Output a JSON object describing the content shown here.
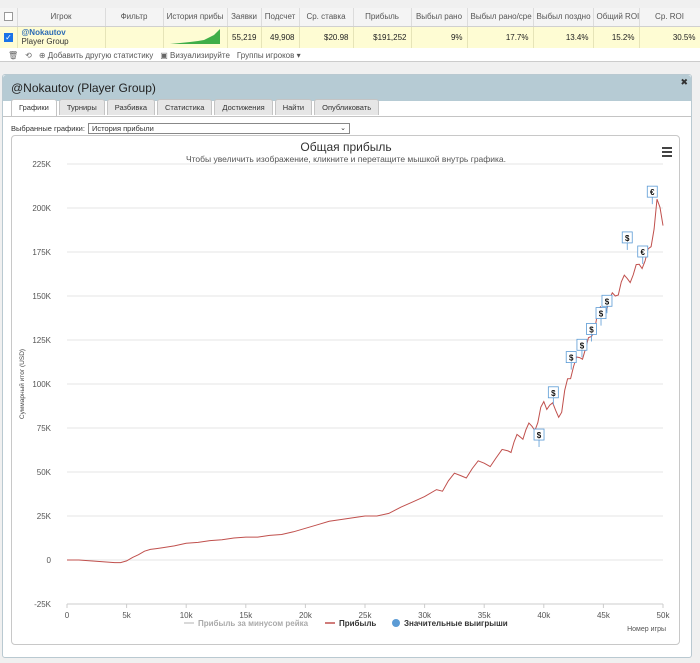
{
  "table": {
    "headers": [
      "Игрок",
      "Фильтр",
      "История прибы",
      "Заявки",
      "Подсчет",
      "Ср. ставка",
      "Прибыль",
      "Выбыл рано",
      "Выбыл рано/сре",
      "Выбыл поздно",
      "Общий ROI",
      "Ср. ROI"
    ],
    "row": {
      "player_name": "@Nokautov",
      "player_group": "Player Group",
      "filter": "",
      "entries": "55,219",
      "count": "49,908",
      "avg_stake": "$20.98",
      "profit": "$191,252",
      "early_out": "9%",
      "early_mid_out": "17.7%",
      "late_out": "13.4%",
      "total_roi": "15.2%",
      "avg_roi": "30.5%"
    }
  },
  "toolbar": {
    "add_stat": "Добавить другую статистику",
    "visualize": "Визуализируйте",
    "player_groups": "Группы игроков"
  },
  "panel": {
    "title": "@Nokautov (Player Group)",
    "tabs": [
      "Графики",
      "Турниры",
      "Разбивка",
      "Статистика",
      "Достижения",
      "Найти",
      "Опубликовать"
    ],
    "select_label": "Выбранные графики:",
    "select_value": "История прибыли"
  },
  "colors": {
    "line": "#c0504d",
    "accent": "#2d6cb5",
    "win_marker": "#5b9bd5",
    "row_highlight": "#fefcd3"
  },
  "chart_data": {
    "type": "line",
    "title": "Общая прибыль",
    "subtitle": "Чтобы увеличить изображение, кликните и перетащите мышкой внутрь графика.",
    "xlabel": "Номер игры",
    "ylabel": "Суммарный итог (USD)",
    "xlim": [
      0,
      50000
    ],
    "ylim": [
      -25000,
      225000
    ],
    "x_ticks": [
      "0",
      "5k",
      "10k",
      "15k",
      "20k",
      "25k",
      "30k",
      "35k",
      "40k",
      "45k",
      "50k"
    ],
    "y_ticks": [
      "-25K",
      "0",
      "25K",
      "50K",
      "75K",
      "100K",
      "125K",
      "150K",
      "175K",
      "200K",
      "225K"
    ],
    "legend": [
      "Прибыль за минусом рейка",
      "Прибыль",
      "Значительные выигрыши"
    ],
    "series": [
      {
        "name": "Прибыль",
        "x": [
          0,
          1000,
          2000,
          3000,
          4000,
          4500,
          5000,
          5500,
          6000,
          6500,
          7000,
          7500,
          8000,
          9000,
          10000,
          11000,
          12000,
          13000,
          14000,
          15000,
          16000,
          17000,
          18000,
          19000,
          20000,
          21000,
          22000,
          23000,
          24000,
          25000,
          26000,
          27000,
          28000,
          29000,
          30000,
          31000,
          32000,
          33000,
          34000,
          35000,
          36000,
          37000,
          37500,
          38000,
          38500,
          39000,
          39500,
          40000,
          40500,
          41000,
          41500,
          42000,
          42500,
          43000,
          43500,
          44000,
          44500,
          45000,
          45500,
          46000,
          46500,
          47000,
          47500,
          48000,
          48500,
          49000,
          49500,
          50000
        ],
        "y": [
          0,
          0,
          -500,
          -1000,
          -1500,
          -1500,
          -500,
          1500,
          3000,
          5000,
          6000,
          6500,
          7000,
          8000,
          9500,
          10000,
          11000,
          11500,
          12500,
          13000,
          13000,
          14000,
          14500,
          16000,
          18000,
          20000,
          22000,
          23000,
          24000,
          25000,
          25000,
          26500,
          30000,
          33000,
          36000,
          40000,
          45000,
          48000,
          52000,
          55000,
          58000,
          62000,
          67000,
          70000,
          74000,
          76000,
          78000,
          90000,
          88000,
          85000,
          84000,
          103000,
          110000,
          115000,
          120000,
          127000,
          140000,
          142000,
          148000,
          150000,
          158000,
          160000,
          162000,
          168000,
          170000,
          178000,
          205000,
          190000
        ]
      }
    ],
    "big_wins": [
      {
        "x": 39600,
        "y": 71000,
        "label": "$"
      },
      {
        "x": 40800,
        "y": 95000,
        "label": "$"
      },
      {
        "x": 42300,
        "y": 115000,
        "label": "$"
      },
      {
        "x": 43200,
        "y": 122000,
        "label": "$"
      },
      {
        "x": 44000,
        "y": 131000,
        "label": "$"
      },
      {
        "x": 44800,
        "y": 140000,
        "label": "$"
      },
      {
        "x": 45300,
        "y": 147000,
        "label": "$"
      },
      {
        "x": 47000,
        "y": 183000,
        "label": "$"
      },
      {
        "x": 48300,
        "y": 175000,
        "label": "€"
      },
      {
        "x": 49100,
        "y": 209000,
        "label": "€"
      }
    ]
  }
}
